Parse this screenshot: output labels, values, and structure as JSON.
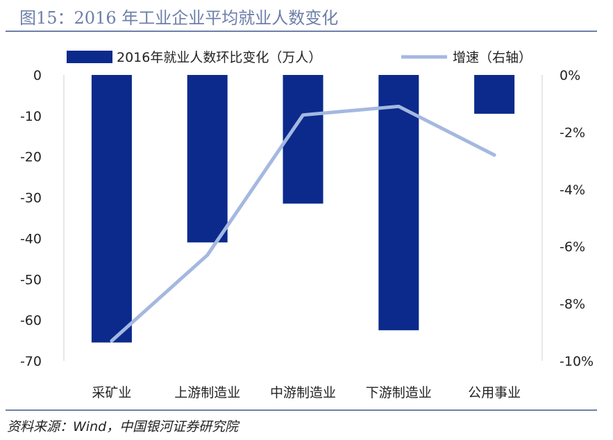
{
  "header": {
    "title": "图15：2016 年工业企业平均就业人数变化"
  },
  "footer": {
    "source": "资料来源：Wind，中国银河证券研究院"
  },
  "chart_data": {
    "type": "bar",
    "categories": [
      "采矿业",
      "上游制造业",
      "中游制造业",
      "下游制造业",
      "公用事业"
    ],
    "series": [
      {
        "name": "2016年就业人数环比变化（万人）",
        "type": "bar",
        "axis": "left",
        "color": "#0b2a8c",
        "values": [
          -65.5,
          -41,
          -31.5,
          -62.5,
          -9.5
        ]
      },
      {
        "name": "增速（右轴）",
        "type": "line",
        "axis": "right",
        "color": "#a4b8e0",
        "values": [
          -9.3,
          -6.3,
          -1.4,
          -1.1,
          -2.8
        ]
      }
    ],
    "left_axis": {
      "min": -70,
      "max": 0,
      "step": 10,
      "tick_labels": [
        "0",
        "-10",
        "-20",
        "-30",
        "-40",
        "-50",
        "-60",
        "-70"
      ]
    },
    "right_axis": {
      "min": -10,
      "max": 0,
      "step": 2,
      "unit": "%",
      "tick_labels": [
        "0%",
        "-2%",
        "-4%",
        "-6%",
        "-8%",
        "-10%"
      ]
    },
    "legend_position": "top",
    "grid": false
  }
}
